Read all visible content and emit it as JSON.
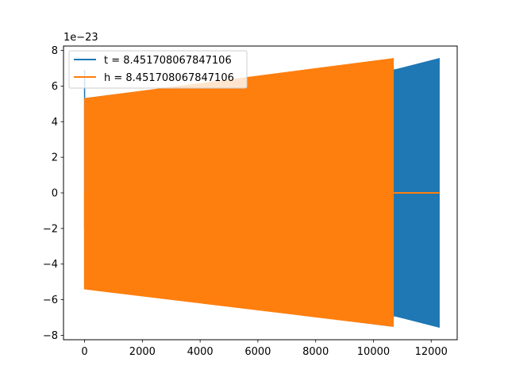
{
  "chart_data": {
    "type": "line",
    "title": "",
    "xlabel": "",
    "ylabel": "",
    "y_offset_label": "1e−23",
    "xlim": [
      -730,
      12900
    ],
    "ylim": [
      -8.25,
      8.25
    ],
    "x_ticks": [
      {
        "value": 0,
        "label": "0"
      },
      {
        "value": 2000,
        "label": "2000"
      },
      {
        "value": 4000,
        "label": "4000"
      },
      {
        "value": 6000,
        "label": "6000"
      },
      {
        "value": 8000,
        "label": "8000"
      },
      {
        "value": 10000,
        "label": "10000"
      },
      {
        "value": 12000,
        "label": "12000"
      }
    ],
    "y_ticks": [
      {
        "value": -8,
        "label": "−8"
      },
      {
        "value": -6,
        "label": "−6"
      },
      {
        "value": -4,
        "label": "−4"
      },
      {
        "value": -2,
        "label": "−2"
      },
      {
        "value": 0,
        "label": "0"
      },
      {
        "value": 2,
        "label": "2"
      },
      {
        "value": 4,
        "label": "4"
      },
      {
        "value": 6,
        "label": "6"
      },
      {
        "value": 8,
        "label": "8"
      }
    ],
    "grid": false,
    "legend_position": "upper-left",
    "series": [
      {
        "name": "t = 8.451708067847106",
        "color": "#1f77b4",
        "x_range": [
          0,
          12280
        ],
        "envelope": {
          "x": [
            0,
            10660,
            10700,
            12280
          ],
          "y_upper": [
            5.3,
            7.5,
            6.9,
            7.55
          ],
          "y_lower": [
            -5.3,
            -7.5,
            -6.9,
            -7.55
          ]
        },
        "spikes": [
          {
            "x": 0,
            "y": 6.9
          },
          {
            "x": 0,
            "y": 0
          }
        ]
      },
      {
        "name": "h = 8.451708067847106",
        "color": "#ff7f0e",
        "x_range": [
          0,
          12280
        ],
        "envelope": {
          "x": [
            0,
            10690
          ],
          "y_upper": [
            5.3,
            7.55
          ],
          "y_lower": [
            -5.4,
            -7.5
          ]
        },
        "flat_segment": {
          "x": [
            10690,
            12280
          ],
          "y": 0
        },
        "spikes": [
          {
            "x": 0,
            "y": -5.4
          },
          {
            "x": 0,
            "y": -2.0
          }
        ]
      }
    ]
  }
}
